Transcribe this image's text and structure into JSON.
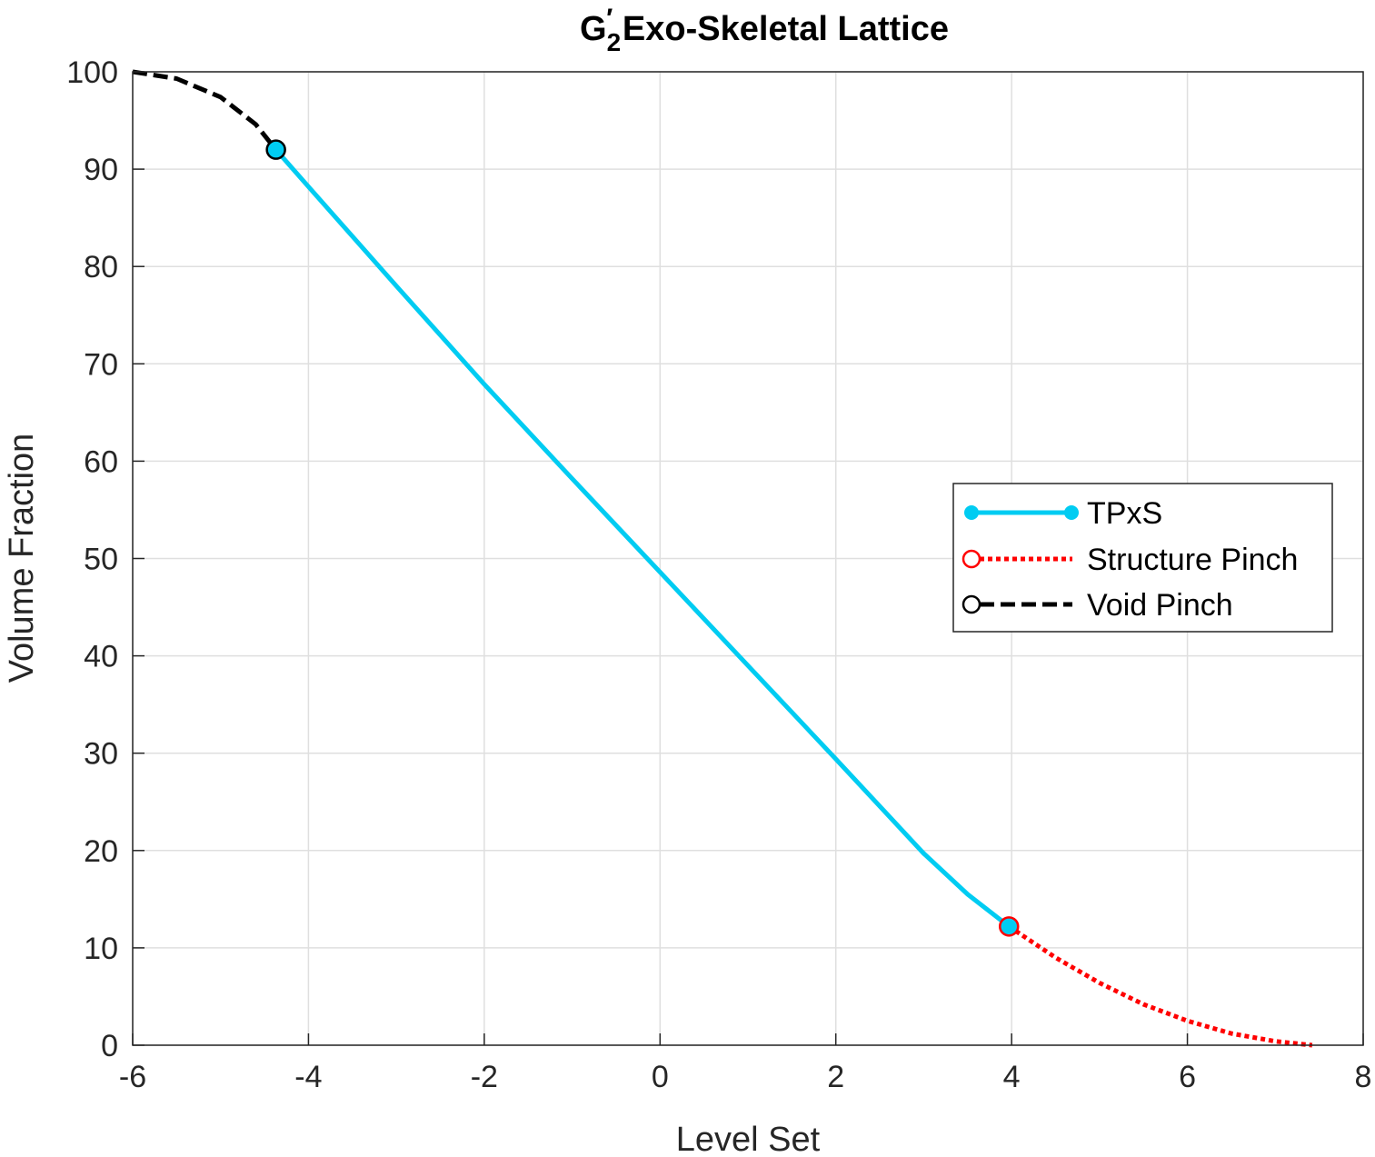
{
  "chart_data": {
    "type": "line",
    "title": {
      "main": "G",
      "subscript": "2",
      "prime": "′",
      "rest": " Exo-Skeletal Lattice"
    },
    "xlabel": "Level Set",
    "ylabel": "Volume Fraction",
    "xlim": [
      -6,
      8
    ],
    "ylim": [
      0,
      100
    ],
    "xticks": [
      -6,
      -4,
      -2,
      0,
      2,
      4,
      6,
      8
    ],
    "yticks": [
      0,
      10,
      20,
      30,
      40,
      50,
      60,
      70,
      80,
      90,
      100
    ],
    "grid": true,
    "legend_position": "center-right",
    "series": [
      {
        "name": "TPxS",
        "color": "#00ccf2",
        "style": "solid-with-dot-markers",
        "x": [
          -4.37,
          -4.0,
          -3.0,
          -2.0,
          -1.0,
          0.0,
          1.0,
          2.0,
          3.0,
          3.5,
          3.97
        ],
        "y": [
          92.0,
          88.2,
          78.0,
          67.9,
          58.2,
          48.6,
          39.0,
          29.4,
          19.7,
          15.5,
          12.2
        ]
      },
      {
        "name": "Structure Pinch",
        "color": "#ff0000",
        "style": "dotted-with-open-circle-marker",
        "x": [
          3.97,
          4.5,
          5.0,
          5.5,
          6.0,
          6.5,
          7.0,
          7.42
        ],
        "y": [
          12.2,
          9.0,
          6.4,
          4.2,
          2.5,
          1.2,
          0.4,
          0.0
        ]
      },
      {
        "name": "Void Pinch",
        "color": "#000000",
        "style": "dashed-with-open-circle-marker",
        "x": [
          -6.0,
          -5.5,
          -5.0,
          -4.6,
          -4.37
        ],
        "y": [
          100.0,
          99.3,
          97.4,
          94.6,
          92.0
        ]
      }
    ],
    "markers": [
      {
        "x": -4.37,
        "y": 92.0,
        "fill": "#00ccf2",
        "stroke": "#000000"
      },
      {
        "x": 3.97,
        "y": 12.2,
        "fill": "#00ccf2",
        "stroke": "#ff0000"
      }
    ]
  }
}
